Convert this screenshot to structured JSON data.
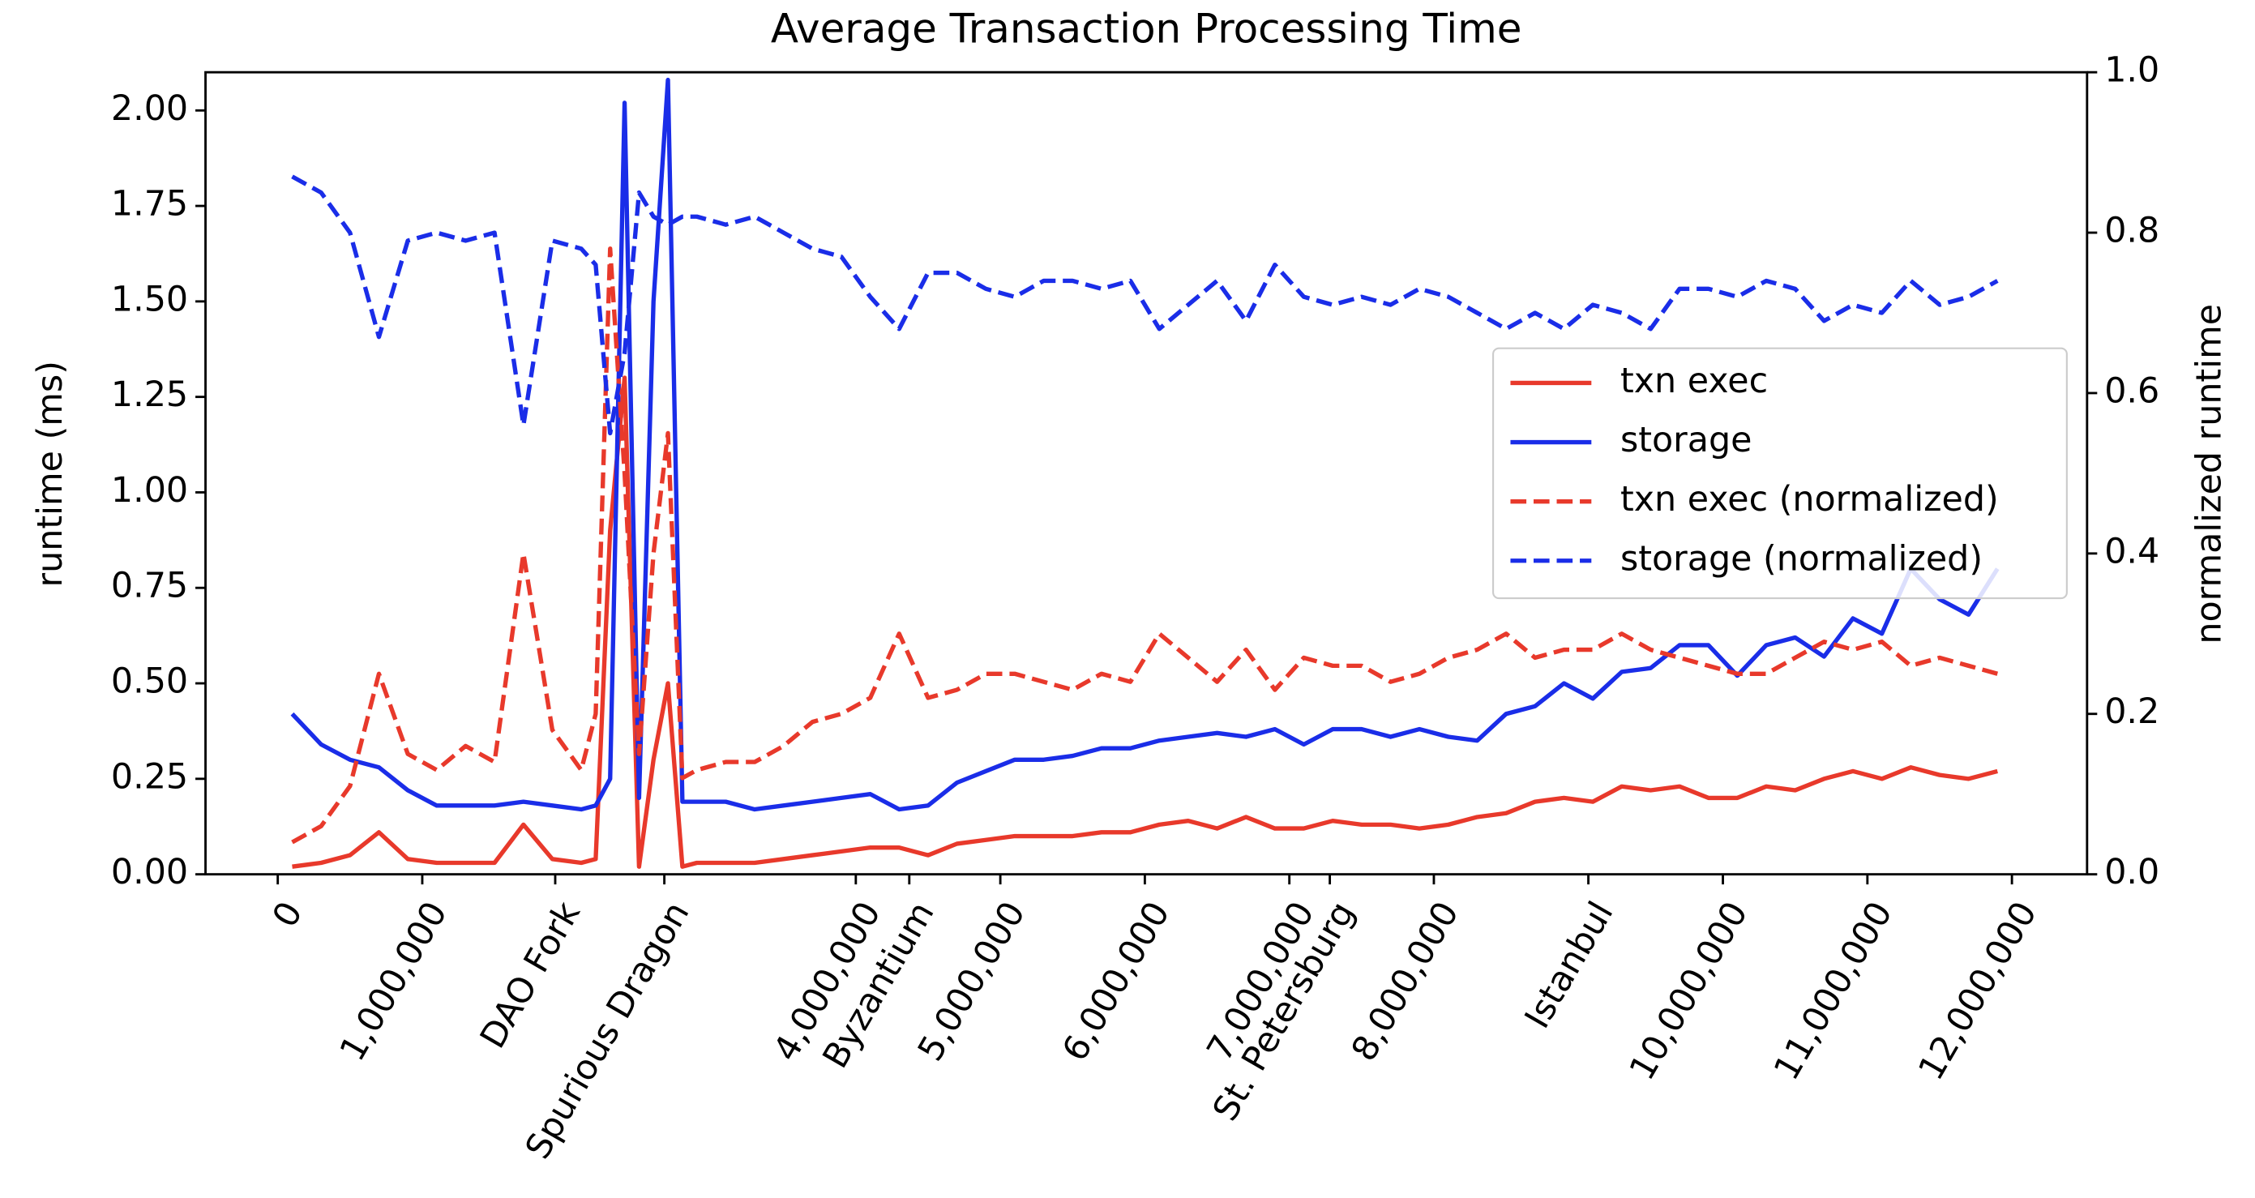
{
  "chart_data": {
    "type": "line",
    "title": "Average Transaction Processing Time",
    "ylabel": "runtime (ms)",
    "y2label": "normalized runtime",
    "legend": "center right",
    "x": [
      100000,
      300000,
      500000,
      700000,
      900000,
      1100000,
      1300000,
      1500000,
      1700000,
      1900000,
      2100000,
      2200000,
      2300000,
      2400000,
      2500000,
      2600000,
      2700000,
      2800000,
      2900000,
      3100000,
      3300000,
      3500000,
      3700000,
      3900000,
      4100000,
      4300000,
      4500000,
      4700000,
      4900000,
      5100000,
      5300000,
      5500000,
      5700000,
      5900000,
      6100000,
      6300000,
      6500000,
      6700000,
      6900000,
      7100000,
      7300000,
      7500000,
      7700000,
      7900000,
      8100000,
      8300000,
      8500000,
      8700000,
      8900000,
      9100000,
      9300000,
      9500000,
      9700000,
      9900000,
      10100000,
      10300000,
      10500000,
      10700000,
      10900000,
      11100000,
      11300000,
      11500000,
      11700000,
      11900000
    ],
    "xlim": [
      -500000,
      12520000
    ],
    "xticks": [
      0,
      {
        "value": 1000000,
        "label": "1,000,000"
      },
      {
        "value": 1920000,
        "label": "DAO Fork"
      },
      {
        "value": 2675000,
        "label": "Spurious Dragon"
      },
      {
        "value": 4000000,
        "label": "4,000,000"
      },
      {
        "value": 4370000,
        "label": "Byzantium"
      },
      {
        "value": 5000000,
        "label": "5,000,000"
      },
      {
        "value": 6000000,
        "label": "6,000,000"
      },
      {
        "value": 7000000,
        "label": "7,000,000"
      },
      {
        "value": 7280000,
        "label": "St. Petersburg"
      },
      {
        "value": 8000000,
        "label": "8,000,000"
      },
      {
        "value": 9069000,
        "label": "Istanbul"
      },
      {
        "value": 10000000,
        "label": "10,000,000"
      },
      {
        "value": 11000000,
        "label": "11,000,000"
      },
      {
        "value": 12000000,
        "label": "12,000,000"
      }
    ],
    "ylim": [
      0,
      2.1
    ],
    "yticks": [
      {
        "value": 0,
        "label": "0.00"
      },
      {
        "value": 0.25,
        "label": "0.25"
      },
      {
        "value": 0.5,
        "label": "0.50"
      },
      {
        "value": 0.75,
        "label": "0.75"
      },
      {
        "value": 1,
        "label": "1.00"
      },
      {
        "value": 1.25,
        "label": "1.25"
      },
      {
        "value": 1.5,
        "label": "1.50"
      },
      {
        "value": 1.75,
        "label": "1.75"
      },
      {
        "value": 2,
        "label": "2.00"
      }
    ],
    "y2lim": [
      0,
      1
    ],
    "y2ticks": [
      {
        "value": 0,
        "label": "0.0"
      },
      {
        "value": 0.2,
        "label": "0.2"
      },
      {
        "value": 0.4,
        "label": "0.4"
      },
      {
        "value": 0.6,
        "label": "0.6"
      },
      {
        "value": 0.8,
        "label": "0.8"
      },
      {
        "value": 1,
        "label": "1.0"
      }
    ],
    "series": [
      {
        "name": "txn exec",
        "color": "#e8392b",
        "linestyle": "solid",
        "values": [
          0.02,
          0.03,
          0.05,
          0.11,
          0.04,
          0.03,
          0.03,
          0.03,
          0.13,
          0.04,
          0.03,
          0.04,
          0.9,
          1.3,
          0.02,
          0.3,
          0.5,
          0.02,
          0.03,
          0.03,
          0.03,
          0.04,
          0.05,
          0.06,
          0.07,
          0.07,
          0.05,
          0.08,
          0.09,
          0.1,
          0.1,
          0.1,
          0.11,
          0.11,
          0.13,
          0.14,
          0.12,
          0.15,
          0.12,
          0.12,
          0.14,
          0.13,
          0.13,
          0.12,
          0.13,
          0.15,
          0.16,
          0.19,
          0.2,
          0.19,
          0.23,
          0.22,
          0.23,
          0.2,
          0.2,
          0.23,
          0.22,
          0.25,
          0.27,
          0.25,
          0.28,
          0.26,
          0.25,
          0.27
        ]
      },
      {
        "name": "storage",
        "color": "#1a2de8",
        "linestyle": "solid",
        "values": [
          0.42,
          0.34,
          0.3,
          0.28,
          0.22,
          0.18,
          0.18,
          0.18,
          0.19,
          0.18,
          0.17,
          0.18,
          0.25,
          2.02,
          0.2,
          1.5,
          2.08,
          0.19,
          0.19,
          0.19,
          0.17,
          0.18,
          0.19,
          0.2,
          0.21,
          0.17,
          0.18,
          0.24,
          0.27,
          0.3,
          0.3,
          0.31,
          0.33,
          0.33,
          0.35,
          0.36,
          0.37,
          0.36,
          0.38,
          0.34,
          0.38,
          0.38,
          0.36,
          0.38,
          0.36,
          0.35,
          0.42,
          0.44,
          0.5,
          0.46,
          0.53,
          0.54,
          0.6,
          0.6,
          0.52,
          0.6,
          0.62,
          0.57,
          0.67,
          0.63,
          0.8,
          0.72,
          0.68,
          0.8
        ]
      },
      {
        "name": "txn exec (normalized)",
        "color": "#e8392b",
        "linestyle": "dashed",
        "axis": "y2",
        "values": [
          0.04,
          0.06,
          0.11,
          0.25,
          0.15,
          0.13,
          0.16,
          0.14,
          0.4,
          0.18,
          0.13,
          0.2,
          0.78,
          0.5,
          0.15,
          0.4,
          0.55,
          0.12,
          0.13,
          0.14,
          0.14,
          0.16,
          0.19,
          0.2,
          0.22,
          0.3,
          0.22,
          0.23,
          0.25,
          0.25,
          0.24,
          0.23,
          0.25,
          0.24,
          0.3,
          0.27,
          0.24,
          0.28,
          0.23,
          0.27,
          0.26,
          0.26,
          0.24,
          0.25,
          0.27,
          0.28,
          0.3,
          0.27,
          0.28,
          0.28,
          0.3,
          0.28,
          0.27,
          0.26,
          0.25,
          0.25,
          0.27,
          0.29,
          0.28,
          0.29,
          0.26,
          0.27,
          0.26,
          0.25
        ]
      },
      {
        "name": "storage (normalized)",
        "color": "#1a2de8",
        "linestyle": "dashed",
        "axis": "y2",
        "values": [
          0.87,
          0.85,
          0.8,
          0.67,
          0.79,
          0.8,
          0.79,
          0.8,
          0.56,
          0.79,
          0.78,
          0.76,
          0.55,
          0.65,
          0.85,
          0.82,
          0.81,
          0.82,
          0.82,
          0.81,
          0.82,
          0.8,
          0.78,
          0.77,
          0.72,
          0.68,
          0.75,
          0.75,
          0.73,
          0.72,
          0.74,
          0.74,
          0.73,
          0.74,
          0.68,
          0.71,
          0.74,
          0.69,
          0.76,
          0.72,
          0.71,
          0.72,
          0.71,
          0.73,
          0.72,
          0.7,
          0.68,
          0.7,
          0.68,
          0.71,
          0.7,
          0.68,
          0.73,
          0.73,
          0.72,
          0.74,
          0.73,
          0.69,
          0.71,
          0.7,
          0.74,
          0.71,
          0.72,
          0.74
        ]
      }
    ]
  }
}
